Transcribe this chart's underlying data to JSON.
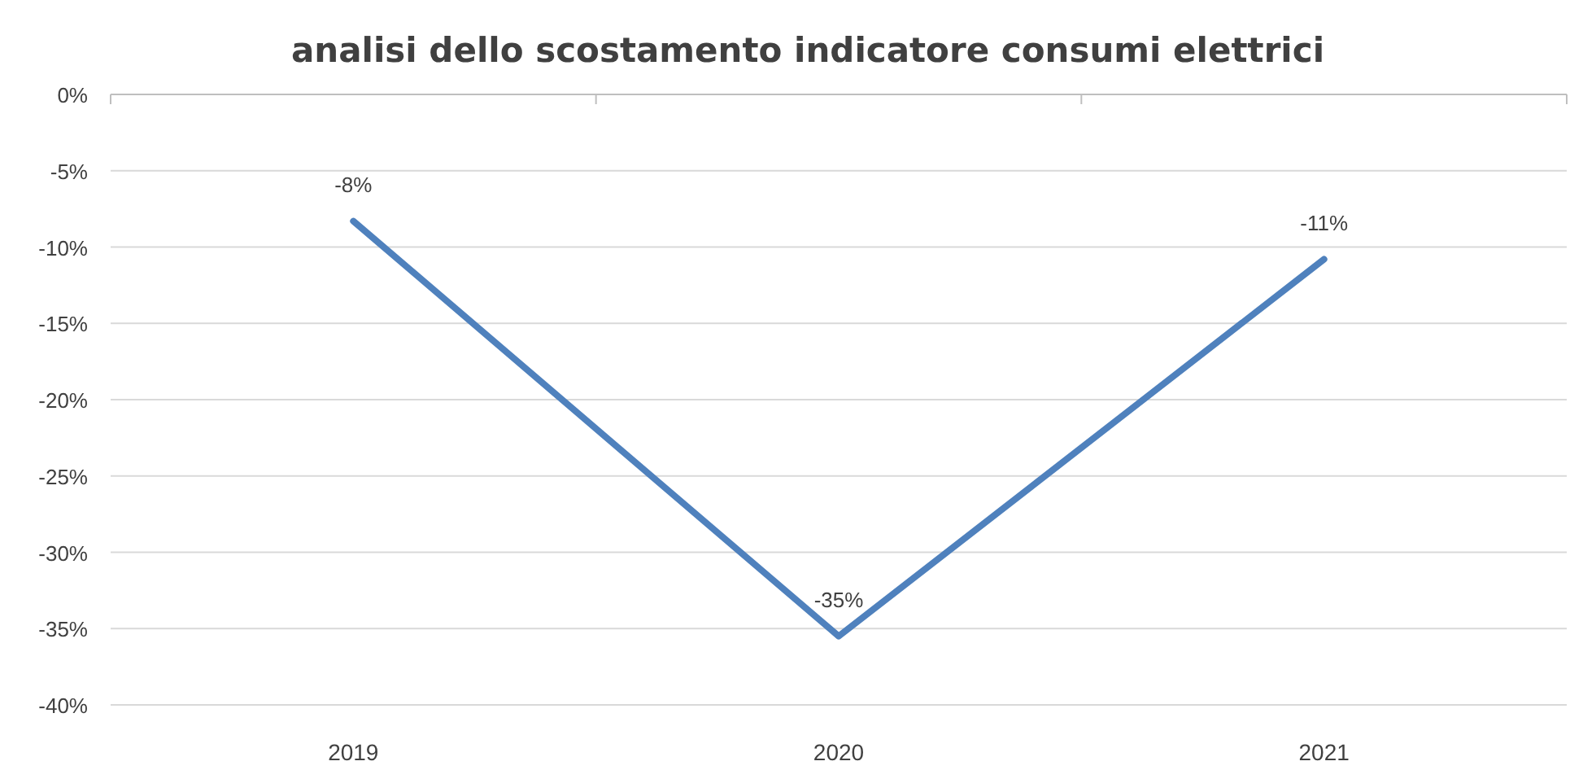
{
  "chart_data": {
    "type": "line",
    "title": "analisi dello scostamento indicatore consumi elettrici",
    "categories": [
      "2019",
      "2020",
      "2021"
    ],
    "series": [
      {
        "color": "#4f81bd",
        "values": [
          -8.3,
          -35.5,
          -10.8
        ],
        "value_labels": [
          "-8%",
          "-35%",
          "-11%"
        ]
      }
    ],
    "ylim": [
      -40,
      0
    ],
    "yticks": [
      {
        "value": 0,
        "label": "0%"
      },
      {
        "value": -5,
        "label": "-5%"
      },
      {
        "value": -10,
        "label": "-10%"
      },
      {
        "value": -15,
        "label": "-15%"
      },
      {
        "value": -20,
        "label": "-20%"
      },
      {
        "value": -25,
        "label": "-25%"
      },
      {
        "value": -30,
        "label": "-30%"
      },
      {
        "value": -35,
        "label": "-35%"
      },
      {
        "value": -40,
        "label": "-40%"
      }
    ],
    "grid": "y",
    "marker": "none",
    "line_style": "solid"
  }
}
